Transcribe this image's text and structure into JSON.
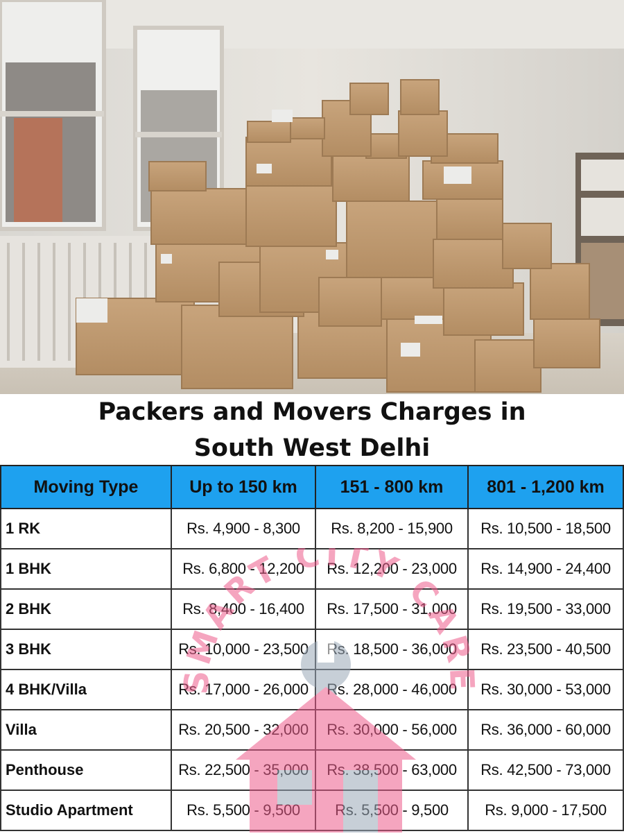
{
  "title": {
    "line1": "Packers and Movers Charges in",
    "line2": "South West Delhi"
  },
  "table": {
    "headers": [
      "Moving Type",
      "Up to 150 km",
      "151 - 800 km",
      "801 - 1,200 km"
    ],
    "rows": [
      {
        "type": "1 RK",
        "c1": "Rs. 4,900 - 8,300",
        "c2": "Rs. 8,200 - 15,900",
        "c3": "Rs. 10,500 - 18,500"
      },
      {
        "type": "1 BHK",
        "c1": "Rs. 6,800 - 12,200",
        "c2": "Rs. 12,200 - 23,000",
        "c3": "Rs. 14,900 - 24,400"
      },
      {
        "type": "2 BHK",
        "c1": "Rs. 8,400 - 16,400",
        "c2": "Rs. 17,500 - 31,000",
        "c3": "Rs. 19,500 - 33,000"
      },
      {
        "type": "3 BHK",
        "c1": "Rs. 10,000 - 23,500",
        "c2": "Rs. 18,500 - 36,000",
        "c3": "Rs. 23,500 - 40,500"
      },
      {
        "type": "4 BHK/Villa",
        "c1": "Rs. 17,000 - 26,000",
        "c2": "Rs. 28,000 - 46,000",
        "c3": "Rs. 30,000 - 53,000"
      },
      {
        "type": "Villa",
        "c1": "Rs. 20,500 - 32,000",
        "c2": "Rs. 30,000 - 56,000",
        "c3": "Rs. 36,000 - 60,000"
      },
      {
        "type": "Penthouse",
        "c1": "Rs. 22,500 - 35,000",
        "c2": "Rs. 38,500 - 63,000",
        "c3": "Rs. 42,500 - 73,000"
      },
      {
        "type": "Studio Apartment",
        "c1": "Rs. 5,500 - 9,500",
        "c2": "Rs. 5,500 - 9,500",
        "c3": "Rs. 9,000 - 17,500"
      }
    ]
  },
  "watermark": {
    "text": "SMART CITY CARE",
    "icon": "house-wrench-logo"
  },
  "colors": {
    "header_bg": "#1ea1ef",
    "watermark_pink": "#ee5c8c",
    "watermark_gray": "#9aa8b8"
  }
}
